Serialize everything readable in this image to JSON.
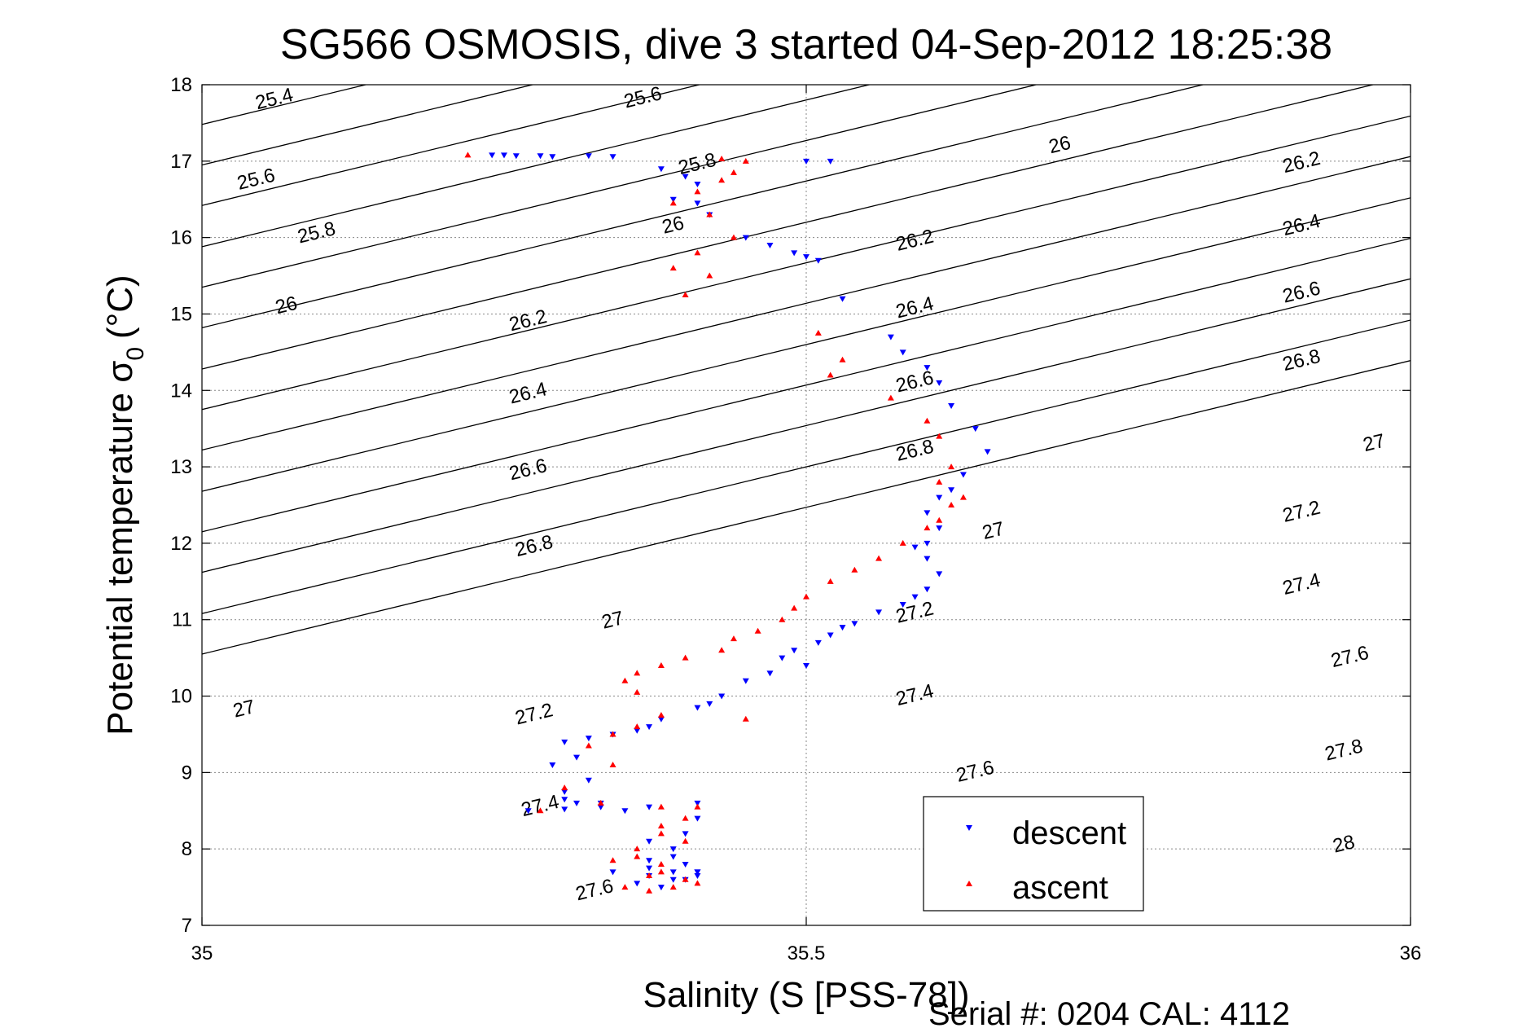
{
  "chart_data": {
    "type": "scatter",
    "title": "SG566 OSMOSIS, dive 3 started 04-Sep-2012 18:25:38",
    "xlabel": "Salinity (S [PSS-78])",
    "ylabel_main": "Potential temperature σ",
    "ylabel_sub": "0",
    "ylabel_unit": "(°C)",
    "footer": "Serial #: 0204  CAL: 4112",
    "xlim": [
      35,
      36
    ],
    "ylim": [
      7,
      18
    ],
    "xticks": [
      "35",
      "35.5",
      "36"
    ],
    "yticks": [
      "7",
      "8",
      "9",
      "10",
      "11",
      "12",
      "13",
      "14",
      "15",
      "16",
      "17",
      "18"
    ],
    "grid": true,
    "legend_position": "bottom-right",
    "contours": [
      {
        "label": "25.4",
        "y35": 17.48,
        "slope": 3.84
      },
      {
        "label": "25.6",
        "y35": 16.95,
        "slope": 3.84
      },
      {
        "label": "25.8",
        "y35": 16.42,
        "slope": 3.84
      },
      {
        "label": "26",
        "y35": 15.88,
        "slope": 3.84
      },
      {
        "label": "26.2",
        "y35": 15.35,
        "slope": 3.84
      },
      {
        "label": "26.4",
        "y35": 14.82,
        "slope": 3.84
      },
      {
        "label": "26.6",
        "y35": 14.28,
        "slope": 3.84
      },
      {
        "label": "26.8",
        "y35": 13.75,
        "slope": 3.84
      },
      {
        "label": "27",
        "y35": 13.22,
        "slope": 3.84
      },
      {
        "label": "27.2",
        "y35": 12.68,
        "slope": 3.84
      },
      {
        "label": "27.4",
        "y35": 12.15,
        "slope": 3.84
      },
      {
        "label": "27.6",
        "y35": 11.62,
        "slope": 3.84
      },
      {
        "label": "27.8",
        "y35": 11.08,
        "slope": 3.84
      },
      {
        "label": "28",
        "y35": 10.55,
        "slope": 3.84
      }
    ],
    "contour_labels": [
      {
        "text": "25.4",
        "x": 35.06,
        "y": 17.8
      },
      {
        "text": "25.6",
        "x": 35.045,
        "y": 16.75
      },
      {
        "text": "25.6",
        "x": 35.365,
        "y": 17.82
      },
      {
        "text": "25.8",
        "x": 35.095,
        "y": 16.05
      },
      {
        "text": "25.8",
        "x": 35.41,
        "y": 16.95
      },
      {
        "text": "26",
        "x": 35.07,
        "y": 15.1
      },
      {
        "text": "26",
        "x": 35.39,
        "y": 16.15
      },
      {
        "text": "26",
        "x": 35.71,
        "y": 17.2
      },
      {
        "text": "26.2",
        "x": 35.27,
        "y": 14.9
      },
      {
        "text": "26.2",
        "x": 35.59,
        "y": 15.95
      },
      {
        "text": "26.2",
        "x": 35.91,
        "y": 16.97
      },
      {
        "text": "26.4",
        "x": 35.27,
        "y": 13.95
      },
      {
        "text": "26.4",
        "x": 35.59,
        "y": 15.07
      },
      {
        "text": "26.4",
        "x": 35.91,
        "y": 16.15
      },
      {
        "text": "26.6",
        "x": 35.27,
        "y": 12.95
      },
      {
        "text": "26.6",
        "x": 35.59,
        "y": 14.1
      },
      {
        "text": "26.6",
        "x": 35.91,
        "y": 15.27
      },
      {
        "text": "26.8",
        "x": 35.275,
        "y": 11.95
      },
      {
        "text": "26.8",
        "x": 35.59,
        "y": 13.2
      },
      {
        "text": "26.8",
        "x": 35.91,
        "y": 14.38
      },
      {
        "text": "27",
        "x": 35.34,
        "y": 10.98
      },
      {
        "text": "27",
        "x": 35.655,
        "y": 12.15
      },
      {
        "text": "27",
        "x": 35.97,
        "y": 13.3
      },
      {
        "text": "27",
        "x": 35.035,
        "y": 9.82
      },
      {
        "text": "27.2",
        "x": 35.275,
        "y": 9.75
      },
      {
        "text": "27.2",
        "x": 35.59,
        "y": 11.08
      },
      {
        "text": "27.2",
        "x": 35.91,
        "y": 12.4
      },
      {
        "text": "27.4",
        "x": 35.28,
        "y": 8.55
      },
      {
        "text": "27.4",
        "x": 35.59,
        "y": 10.0
      },
      {
        "text": "27.4",
        "x": 35.91,
        "y": 11.45
      },
      {
        "text": "27.6",
        "x": 35.325,
        "y": 7.45
      },
      {
        "text": "27.6",
        "x": 35.64,
        "y": 9.0
      },
      {
        "text": "27.6",
        "x": 35.95,
        "y": 10.5
      },
      {
        "text": "27.8",
        "x": 35.945,
        "y": 9.28
      },
      {
        "text": "28",
        "x": 35.945,
        "y": 8.05
      }
    ],
    "series": [
      {
        "name": "descent",
        "color": "#0000ff",
        "marker": "triangle-down",
        "x": [
          35.24,
          35.25,
          35.26,
          35.28,
          35.29,
          35.32,
          35.34,
          35.38,
          35.4,
          35.39,
          35.41,
          35.42,
          35.41,
          35.45,
          35.47,
          35.49,
          35.5,
          35.51,
          35.52,
          35.5,
          35.53,
          35.57,
          35.58,
          35.6,
          35.61,
          35.62,
          35.64,
          35.65,
          35.63,
          35.62,
          35.61,
          35.6,
          35.61,
          35.6,
          35.59,
          35.6,
          35.61,
          35.6,
          35.59,
          35.58,
          35.56,
          35.54,
          35.53,
          35.52,
          35.51,
          35.49,
          35.48,
          35.5,
          35.47,
          35.45,
          35.43,
          35.42,
          35.41,
          35.38,
          35.37,
          35.36,
          35.34,
          35.32,
          35.3,
          35.31,
          35.29,
          35.32,
          35.3,
          35.31,
          35.33,
          35.35,
          35.3,
          35.27,
          35.3,
          35.33,
          35.37,
          35.41,
          35.41,
          35.4,
          35.39,
          35.37,
          35.39,
          35.41,
          35.4,
          35.37,
          35.34,
          35.37,
          35.4,
          35.41,
          35.39,
          35.38,
          35.36,
          35.41,
          35.39,
          35.37
        ],
        "y": [
          17.08,
          17.08,
          17.07,
          17.07,
          17.06,
          17.07,
          17.06,
          16.9,
          16.8,
          16.5,
          16.45,
          16.3,
          16.7,
          16.0,
          15.9,
          15.8,
          15.75,
          15.7,
          17.0,
          17.0,
          15.2,
          14.7,
          14.5,
          14.3,
          14.1,
          13.8,
          13.5,
          13.2,
          12.9,
          12.7,
          12.6,
          12.4,
          12.2,
          12.0,
          11.95,
          11.8,
          11.6,
          11.4,
          11.3,
          11.2,
          11.1,
          10.95,
          10.9,
          10.8,
          10.7,
          10.6,
          10.5,
          10.4,
          10.3,
          10.2,
          10.0,
          9.9,
          9.85,
          9.7,
          9.6,
          9.55,
          9.5,
          9.45,
          9.4,
          9.2,
          9.1,
          8.9,
          8.75,
          8.6,
          8.55,
          8.5,
          8.52,
          8.5,
          8.65,
          8.6,
          8.55,
          8.6,
          8.4,
          8.2,
          8.0,
          7.85,
          7.7,
          7.65,
          7.6,
          7.65,
          7.7,
          7.75,
          7.8,
          7.7,
          7.6,
          7.5,
          7.55,
          7.7,
          7.9,
          8.1
        ]
      },
      {
        "name": "ascent",
        "color": "#ff0000",
        "marker": "triangle-up",
        "x": [
          35.22,
          35.43,
          35.45,
          35.44,
          35.43,
          35.41,
          35.39,
          35.42,
          35.44,
          35.41,
          35.39,
          35.42,
          35.4,
          35.51,
          35.53,
          35.52,
          35.57,
          35.6,
          35.61,
          35.62,
          35.61,
          35.63,
          35.62,
          35.61,
          35.6,
          35.58,
          35.56,
          35.54,
          35.52,
          35.5,
          35.49,
          35.48,
          35.46,
          35.44,
          35.43,
          35.4,
          35.38,
          35.36,
          35.35,
          35.36,
          35.45,
          35.38,
          35.36,
          35.34,
          35.32,
          35.34,
          35.3,
          35.28,
          35.33,
          35.38,
          35.41,
          35.4,
          35.38,
          35.36,
          35.34,
          35.38,
          35.4,
          35.41,
          35.39,
          35.37,
          35.35,
          35.37,
          35.38,
          35.36,
          35.4,
          35.38
        ],
        "y": [
          17.08,
          17.03,
          17.0,
          16.85,
          16.75,
          16.6,
          16.45,
          16.3,
          16.0,
          15.8,
          15.6,
          15.5,
          15.25,
          14.75,
          14.4,
          14.2,
          13.9,
          13.6,
          13.4,
          13.0,
          12.8,
          12.6,
          12.5,
          12.3,
          12.2,
          12.0,
          11.8,
          11.65,
          11.5,
          11.3,
          11.15,
          11.0,
          10.85,
          10.75,
          10.6,
          10.5,
          10.4,
          10.3,
          10.2,
          10.05,
          9.7,
          9.75,
          9.6,
          9.5,
          9.35,
          9.1,
          8.8,
          8.5,
          8.6,
          8.55,
          8.55,
          8.4,
          8.2,
          8.0,
          7.85,
          7.7,
          7.6,
          7.55,
          7.5,
          7.45,
          7.5,
          7.65,
          7.8,
          7.9,
          8.1,
          8.3
        ]
      }
    ]
  }
}
